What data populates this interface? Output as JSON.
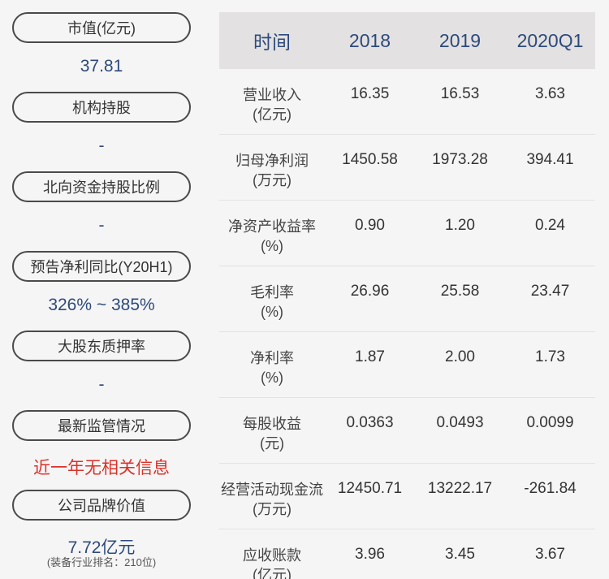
{
  "left": {
    "items": [
      {
        "label": "市值(亿元)",
        "value": "37.81"
      },
      {
        "label": "机构持股",
        "value": "-"
      },
      {
        "label": "北向资金持股比例",
        "value": "-"
      },
      {
        "label": "预告净利同比(Y20H1)",
        "value": "326% ~ 385%"
      },
      {
        "label": "大股东质押率",
        "value": "-"
      },
      {
        "label": "最新监管情况",
        "value": "近一年无相关信息"
      },
      {
        "label": "公司品牌价值",
        "value": "7.72亿元",
        "note": "(装备行业排名：210位)"
      }
    ]
  },
  "table": {
    "headers": [
      "时间",
      "2018",
      "2019",
      "2020Q1"
    ],
    "rows": [
      {
        "label": "营业收入",
        "unit": "(亿元)",
        "values": [
          "16.35",
          "16.53",
          "3.63"
        ]
      },
      {
        "label": "归母净利润",
        "unit": "(万元)",
        "values": [
          "1450.58",
          "1973.28",
          "394.41"
        ]
      },
      {
        "label": "净资产收益率",
        "unit": "(%)",
        "values": [
          "0.90",
          "1.20",
          "0.24"
        ]
      },
      {
        "label": "毛利率",
        "unit": "(%)",
        "values": [
          "26.96",
          "25.58",
          "23.47"
        ]
      },
      {
        "label": "净利率",
        "unit": "(%)",
        "values": [
          "1.87",
          "2.00",
          "1.73"
        ]
      },
      {
        "label": "每股收益",
        "unit": "(元)",
        "values": [
          "0.0363",
          "0.0493",
          "0.0099"
        ]
      },
      {
        "label": "经营活动现金流",
        "unit": "(万元)",
        "values": [
          "12450.71",
          "13222.17",
          "-261.84"
        ]
      },
      {
        "label": "应收账款",
        "unit": "(亿元)",
        "values": [
          "3.96",
          "3.45",
          "3.67"
        ]
      }
    ]
  },
  "colors": {
    "background": "#f6f5f5",
    "header_bg": "#e3e1e1",
    "value_blue": "#2c4a7c",
    "alert_red": "#d7332b"
  }
}
